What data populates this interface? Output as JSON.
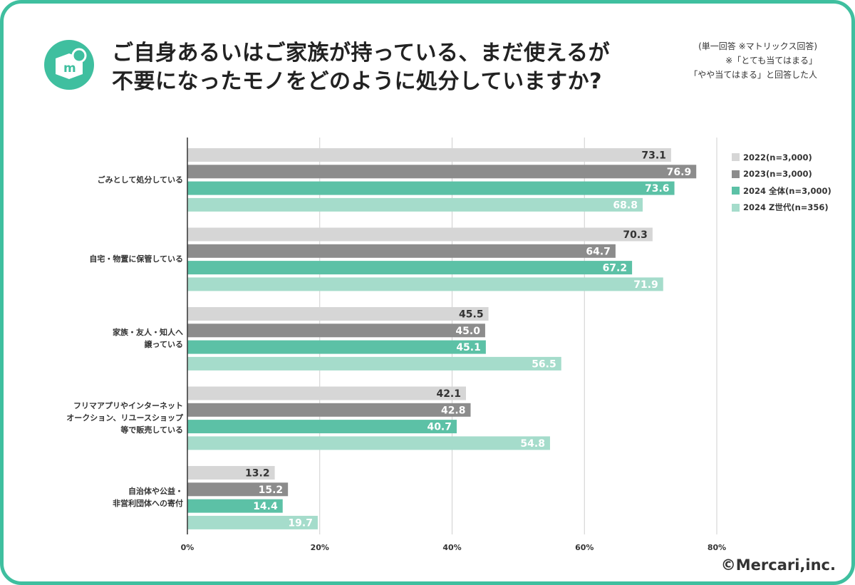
{
  "title": {
    "line1": "ご自身あるいはご家族が持っている、まだ使えるが",
    "line2": "不要になったモノをどのように処分していますか?"
  },
  "note": {
    "line1": "(単一回答 ※マトリックス回答)",
    "line2": "※「とても当てはまる」",
    "line3": "「やや当てはまる」と回答した人"
  },
  "copyright": "©Mercari,inc.",
  "logo": {
    "icon": "mercari-box-icon",
    "letter": "m",
    "color": "#3fbf9f"
  },
  "chart_data": {
    "type": "bar",
    "orientation": "horizontal",
    "categories": [
      [
        "ごみとして処分している"
      ],
      [
        "自宅・物置に保管している"
      ],
      [
        "家族・友人・知人へ",
        "譲っている"
      ],
      [
        "フリマアプリやインターネット",
        "オークション、リユースショップ",
        "等で販売している"
      ],
      [
        "自治体や公益・",
        "非営利団体への寄付"
      ]
    ],
    "series": [
      {
        "name": "2022(n=3,000)",
        "color": "#d6d6d6",
        "label_color": "#333333",
        "values": [
          73.1,
          70.3,
          45.5,
          42.1,
          13.2
        ]
      },
      {
        "name": "2023(n=3,000)",
        "color": "#8c8c8c",
        "label_color": "#ffffff",
        "values": [
          76.9,
          64.7,
          45.0,
          42.8,
          15.2
        ]
      },
      {
        "name": "2024 全体(n=3,000)",
        "color": "#5cc1a6",
        "label_color": "#ffffff",
        "values": [
          73.6,
          67.2,
          45.1,
          40.7,
          14.4
        ]
      },
      {
        "name": "2024 Z世代(n=356)",
        "color": "#a5dccb",
        "label_color": "#ffffff",
        "values": [
          68.8,
          71.9,
          56.5,
          54.8,
          19.7
        ]
      }
    ],
    "value_format": "0.0",
    "xlim": [
      0,
      80
    ],
    "xticks": [
      0,
      20,
      40,
      60,
      80
    ],
    "xtick_labels": [
      "0%",
      "20%",
      "40%",
      "60%",
      "80%"
    ],
    "grid": true,
    "legend_position": "top-right"
  }
}
